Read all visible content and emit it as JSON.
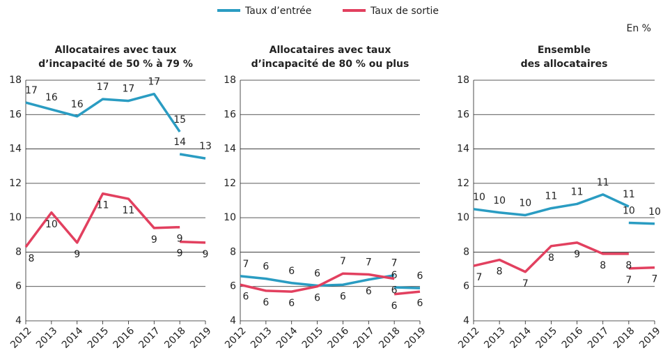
{
  "note": "En %",
  "chart_data": [
    {
      "type": "line",
      "title": [
        "Allocataires avec taux",
        "d’incapacité de 50 % à 79 %"
      ],
      "x": [
        2012,
        2013,
        2014,
        2015,
        2016,
        2017,
        2018,
        null,
        2018,
        2019
      ],
      "xlim": [
        2012,
        2019
      ],
      "xticks": [
        2012,
        2013,
        2014,
        2015,
        2016,
        2017,
        2018,
        2019
      ],
      "ylim": [
        4,
        18
      ],
      "yticks": [
        4,
        6,
        8,
        10,
        12,
        14,
        16,
        18
      ],
      "grid": true,
      "series": [
        {
          "name": "Taux d’entrée",
          "color": "#2a9cc2",
          "values": [
            16.7,
            16.3,
            15.9,
            16.9,
            16.8,
            17.2,
            15.0,
            null,
            13.7,
            13.45
          ],
          "value_labels": [
            "17",
            "16",
            "16",
            "17",
            "17",
            "17",
            "15",
            null,
            "14",
            "13"
          ]
        },
        {
          "name": "Taux de sortie",
          "color": "#e2405f",
          "values": [
            8.3,
            10.3,
            8.55,
            11.4,
            11.1,
            9.4,
            9.45,
            null,
            8.6,
            8.55
          ],
          "value_labels": [
            "8",
            "10",
            "9",
            "11",
            "11",
            "9",
            "9",
            null,
            "9",
            "9"
          ]
        }
      ]
    },
    {
      "type": "line",
      "title": [
        "Allocataires avec taux",
        "d’incapacité de 80 % ou plus"
      ],
      "x": [
        2012,
        2013,
        2014,
        2015,
        2016,
        2017,
        2018,
        null,
        2018,
        2019
      ],
      "xlim": [
        2012,
        2019
      ],
      "xticks": [
        2012,
        2013,
        2014,
        2015,
        2016,
        2017,
        2018,
        2019
      ],
      "ylim": [
        4,
        18
      ],
      "yticks": [
        4,
        6,
        8,
        10,
        12,
        14,
        16,
        18
      ],
      "grid": true,
      "series": [
        {
          "name": "Taux d’entrée",
          "color": "#2a9cc2",
          "values": [
            6.6,
            6.45,
            6.2,
            6.05,
            6.1,
            6.4,
            6.65,
            null,
            5.95,
            5.9
          ],
          "value_labels": [
            "7",
            "6",
            "6",
            "6",
            "6",
            "6",
            "7",
            null,
            "6",
            "6"
          ]
        },
        {
          "name": "Taux de sortie",
          "color": "#e2405f",
          "values": [
            6.1,
            5.75,
            5.7,
            6.0,
            6.75,
            6.7,
            6.45,
            null,
            5.55,
            5.7
          ],
          "value_labels": [
            "6",
            "6",
            "6",
            "6",
            "7",
            "7",
            "6",
            null,
            "6",
            "6"
          ]
        }
      ]
    },
    {
      "type": "line",
      "title": [
        "Ensemble",
        "des allocataires"
      ],
      "x": [
        2012,
        2013,
        2014,
        2015,
        2016,
        2017,
        2018,
        null,
        2018,
        2019
      ],
      "xlim": [
        2012,
        2019
      ],
      "xticks": [
        2012,
        2013,
        2014,
        2015,
        2016,
        2017,
        2018,
        2019
      ],
      "ylim": [
        4,
        18
      ],
      "yticks": [
        4,
        6,
        8,
        10,
        12,
        14,
        16,
        18
      ],
      "grid": true,
      "series": [
        {
          "name": "Taux d’entrée",
          "color": "#2a9cc2",
          "values": [
            10.5,
            10.3,
            10.15,
            10.55,
            10.8,
            11.35,
            10.65,
            null,
            9.7,
            9.65
          ],
          "value_labels": [
            "10",
            "10",
            "10",
            "11",
            "11",
            "11",
            "11",
            null,
            "10",
            "10"
          ]
        },
        {
          "name": "Taux de sortie",
          "color": "#e2405f",
          "values": [
            7.2,
            7.55,
            6.85,
            8.35,
            8.55,
            7.9,
            7.9,
            null,
            7.05,
            7.1
          ],
          "value_labels": [
            "7",
            "8",
            "7",
            "8",
            "9",
            "8",
            "8",
            null,
            "7",
            "7"
          ]
        }
      ]
    }
  ]
}
